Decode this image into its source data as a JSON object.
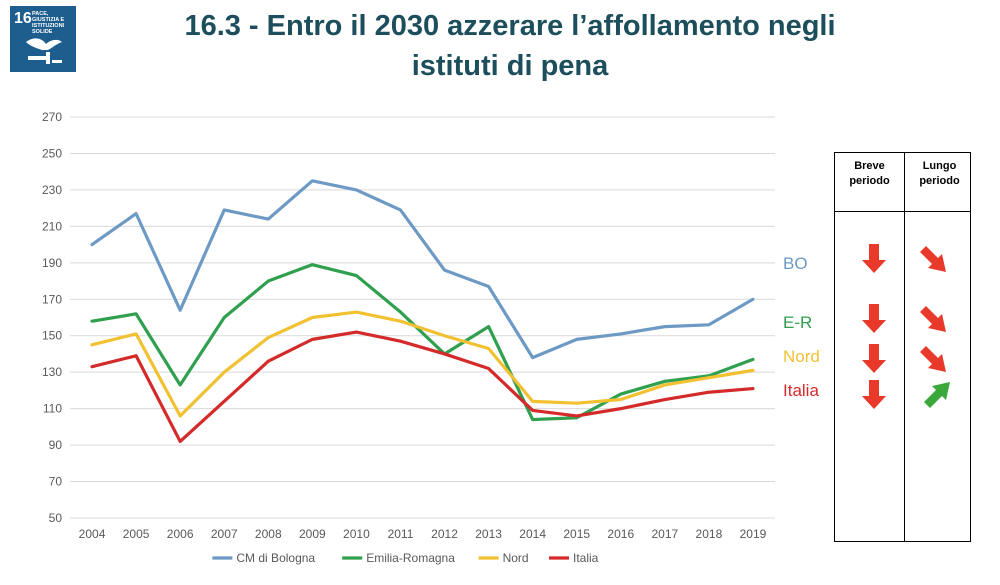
{
  "header": {
    "title_line1": "16.3 - Entro il 2030 azzerare l’affollamento negli",
    "title_line2": "istituti di pena"
  },
  "sdg_badge": {
    "number": "16",
    "text": "PACE, GIUSTIZIA E ISTITUZIONI SOLIDE",
    "color": "#1e5e8f",
    "icon": "dove-gavel-icon"
  },
  "chart_data": {
    "type": "line",
    "x": [
      2004,
      2005,
      2006,
      2007,
      2008,
      2009,
      2010,
      2011,
      2012,
      2013,
      2014,
      2015,
      2016,
      2017,
      2018,
      2019
    ],
    "ylim": [
      50,
      270
    ],
    "yticks": [
      50,
      70,
      90,
      110,
      130,
      150,
      170,
      190,
      210,
      230,
      250,
      270
    ],
    "grid": true,
    "legend_position": "bottom",
    "series": [
      {
        "name": "CM di Bologna",
        "color": "#6d9ac4",
        "values": [
          200,
          217,
          164,
          219,
          214,
          235,
          230,
          219,
          186,
          177,
          138,
          148,
          151,
          155,
          156,
          170
        ]
      },
      {
        "name": "Emilia-Romagna",
        "color": "#2ea04e",
        "values": [
          158,
          162,
          123,
          160,
          180,
          189,
          183,
          163,
          140,
          155,
          104,
          105,
          118,
          125,
          128,
          137
        ]
      },
      {
        "name": "Nord",
        "color": "#f2c132",
        "values": [
          145,
          151,
          106,
          130,
          149,
          160,
          163,
          158,
          150,
          143,
          114,
          113,
          115,
          123,
          127,
          131
        ]
      },
      {
        "name": "Italia",
        "color": "#d42a2a",
        "values": [
          133,
          139,
          92,
          114,
          136,
          148,
          152,
          147,
          140,
          132,
          109,
          106,
          110,
          115,
          119,
          121
        ]
      }
    ]
  },
  "trend_table": {
    "col_short": "Breve periodo",
    "col_long": "Lungo periodo",
    "col_short_l1": "Breve",
    "col_short_l2": "periodo",
    "col_long_l1": "Lungo",
    "col_long_l2": "periodo",
    "rows": [
      {
        "label": "BO",
        "color": "#6d9ac4",
        "short": "arrow-down-icon",
        "short_color": "#e8392a",
        "long": "arrow-down-right-icon",
        "long_color": "#e8392a"
      },
      {
        "label": "E-R",
        "color": "#2ea04e",
        "short": "arrow-down-icon",
        "short_color": "#e8392a",
        "long": "arrow-down-right-icon",
        "long_color": "#e8392a"
      },
      {
        "label": "Nord",
        "color": "#f2c132",
        "short": "arrow-down-icon",
        "short_color": "#e8392a",
        "long": "arrow-down-right-icon",
        "long_color": "#e8392a"
      },
      {
        "label": "Italia",
        "color": "#d42a2a",
        "short": "arrow-down-icon",
        "short_color": "#e8392a",
        "long": "arrow-up-right-icon",
        "long_color": "#3aa83a"
      }
    ]
  }
}
